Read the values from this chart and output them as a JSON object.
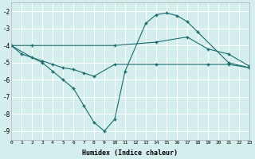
{
  "xlabel": "Humidex (Indice chaleur)",
  "bg_color": "#d4eeee",
  "line_color": "#1a6b6b",
  "grid_color": "#ffffff",
  "grid_minor_color": "#e8f8f8",
  "xlim": [
    0,
    23
  ],
  "ylim": [
    -9.5,
    -1.5
  ],
  "xticks": [
    0,
    1,
    2,
    3,
    4,
    5,
    6,
    7,
    8,
    9,
    10,
    11,
    12,
    13,
    14,
    15,
    16,
    17,
    18,
    19,
    20,
    21,
    22,
    23
  ],
  "yticks": [
    -9,
    -8,
    -7,
    -6,
    -5,
    -4,
    -3,
    -2
  ],
  "line1_x": [
    0,
    2,
    10,
    14,
    17,
    19,
    21,
    23
  ],
  "line1_y": [
    -4.0,
    -4.0,
    -4.0,
    -3.8,
    -3.5,
    -4.2,
    -4.5,
    -5.2
  ],
  "line2_x": [
    0,
    2,
    3,
    4,
    5,
    6,
    7,
    8,
    9,
    10,
    11,
    13,
    14,
    15,
    16,
    17,
    18,
    21,
    23
  ],
  "line2_y": [
    -4.0,
    -4.7,
    -5.0,
    -5.5,
    -6.0,
    -6.5,
    -7.5,
    -8.5,
    -9.0,
    -8.3,
    -5.5,
    -2.7,
    -2.2,
    -2.1,
    -2.25,
    -2.6,
    -3.2,
    -5.0,
    -5.3
  ],
  "line3_x": [
    0,
    1,
    3,
    4,
    5,
    6,
    7,
    8,
    10,
    14,
    19,
    21,
    23
  ],
  "line3_y": [
    -4.0,
    -4.5,
    -4.9,
    -5.1,
    -5.3,
    -5.4,
    -5.6,
    -5.8,
    -5.1,
    -5.1,
    -5.1,
    -5.1,
    -5.3
  ]
}
